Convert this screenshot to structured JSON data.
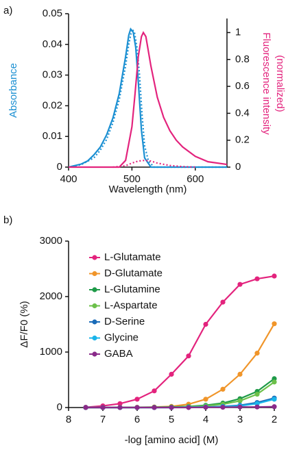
{
  "chart_data": [
    {
      "type": "line",
      "panel_label": "a)",
      "xlabel": "Wavelength (nm)",
      "ylabel": "Absorbance",
      "y2label": [
        "Fluorescence intensity",
        "(normalized)"
      ],
      "xlim": [
        400,
        650
      ],
      "xticks": [
        400,
        500,
        600
      ],
      "ylim": [
        0,
        0.05
      ],
      "yticks": [
        0,
        0.01,
        0.02,
        0.03,
        0.04,
        0.05
      ],
      "y2lim": [
        0,
        1.14
      ],
      "y2ticks": [
        0,
        0.2,
        0.4,
        0.6,
        0.8,
        1
      ],
      "series": [
        {
          "color": "#1a8fd2",
          "dash": false,
          "x": [
            400,
            420,
            430,
            440,
            450,
            460,
            470,
            480,
            490,
            495,
            498,
            502,
            506,
            510,
            515,
            520,
            530,
            650
          ],
          "values": [
            0,
            0.001,
            0.002,
            0.004,
            0.0065,
            0.0105,
            0.016,
            0.024,
            0.036,
            0.043,
            0.045,
            0.044,
            0.039,
            0.028,
            0.012,
            0.003,
            0,
            0
          ]
        },
        {
          "color": "#1a8fd2",
          "dash": true,
          "x": [
            400,
            420,
            440,
            450,
            460,
            470,
            480,
            490,
            495,
            500,
            504,
            508,
            512,
            516,
            520,
            526,
            535,
            650
          ],
          "values": [
            0,
            0.0008,
            0.003,
            0.0055,
            0.009,
            0.0145,
            0.022,
            0.033,
            0.04,
            0.045,
            0.044,
            0.039,
            0.03,
            0.017,
            0.007,
            0.002,
            0,
            0
          ]
        },
        {
          "color": "#e3237d",
          "dash": false,
          "axis": "y2",
          "x": [
            400,
            480,
            490,
            500,
            505,
            510,
            515,
            518,
            522,
            530,
            540,
            550,
            560,
            570,
            580,
            600,
            620,
            650
          ],
          "values": [
            0,
            0,
            0.05,
            0.3,
            0.55,
            0.82,
            0.97,
            1,
            0.97,
            0.75,
            0.52,
            0.37,
            0.27,
            0.2,
            0.15,
            0.08,
            0.04,
            0.02
          ]
        },
        {
          "color": "#e3237d",
          "dash": true,
          "axis": "y2",
          "x": [
            470,
            490,
            500,
            510,
            520,
            530,
            540,
            560,
            580,
            600
          ],
          "values": [
            0,
            0.01,
            0.03,
            0.045,
            0.05,
            0.045,
            0.03,
            0.012,
            0.004,
            0
          ]
        }
      ]
    },
    {
      "type": "line",
      "panel_label": "b)",
      "xlabel": "-log [amino acid] (M)",
      "ylabel": "ΔF/F0 (%)",
      "markers": true,
      "legend": true,
      "xlim": [
        8,
        2
      ],
      "xticks": [
        8,
        7,
        6,
        5,
        4,
        3,
        2
      ],
      "ylim": [
        0,
        3000
      ],
      "yticks": [
        0,
        1000,
        2000,
        3000
      ],
      "x": [
        7.5,
        7,
        6.5,
        6,
        5.5,
        5,
        4.5,
        4,
        3.5,
        3,
        2.5,
        2
      ],
      "series": [
        {
          "name": "L-Glutamate",
          "color": "#e3237d",
          "values": [
            5,
            30,
            70,
            150,
            300,
            600,
            930,
            1500,
            1900,
            2220,
            2320,
            2370
          ]
        },
        {
          "name": "D-Glutamate",
          "color": "#f0952a",
          "values": [
            0,
            0,
            5,
            5,
            10,
            20,
            60,
            150,
            330,
            600,
            980,
            1510
          ]
        },
        {
          "name": "L-Glutamine",
          "color": "#1e9a48",
          "values": [
            0,
            0,
            0,
            0,
            5,
            10,
            20,
            40,
            80,
            160,
            290,
            520
          ]
        },
        {
          "name": "L-Aspartate",
          "color": "#6cc04a",
          "values": [
            0,
            0,
            0,
            0,
            0,
            5,
            15,
            30,
            60,
            120,
            240,
            460
          ]
        },
        {
          "name": "D-Serine",
          "color": "#1a6bb8",
          "values": [
            0,
            0,
            0,
            0,
            0,
            0,
            5,
            10,
            20,
            40,
            90,
            170
          ]
        },
        {
          "name": "Glycine",
          "color": "#1ab4ea",
          "values": [
            0,
            0,
            0,
            0,
            0,
            0,
            5,
            10,
            15,
            30,
            70,
            150
          ]
        },
        {
          "name": "GABA",
          "color": "#8a2a8a",
          "values": [
            0,
            0,
            0,
            0,
            0,
            0,
            0,
            5,
            5,
            10,
            10,
            15
          ]
        }
      ]
    }
  ]
}
